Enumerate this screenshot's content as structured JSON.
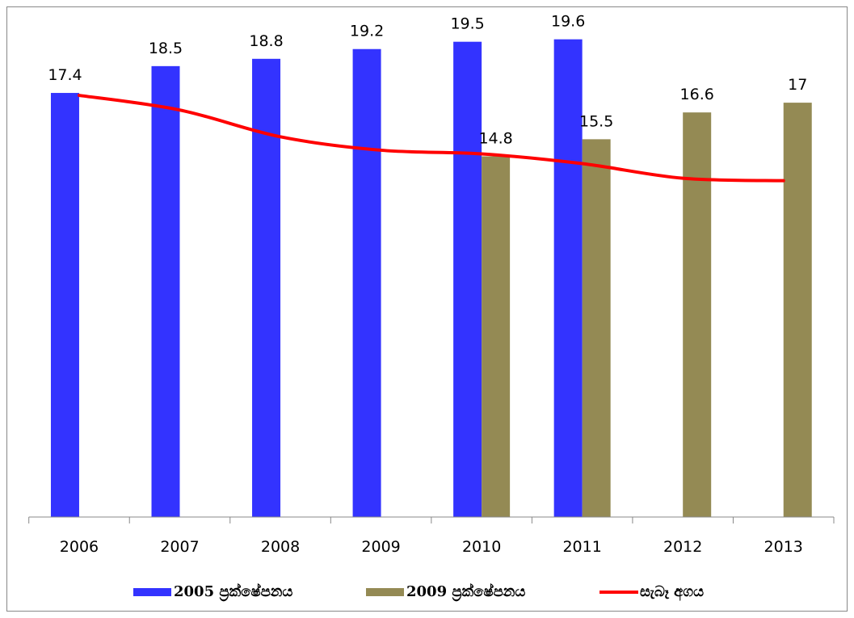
{
  "chart_data": {
    "type": "bar",
    "categories": [
      "2006",
      "2007",
      "2008",
      "2009",
      "2010",
      "2011",
      "2012",
      "2013"
    ],
    "series": [
      {
        "name": "2005 ප්‍රක්ෂේපනය",
        "type": "bar",
        "color": "#3333ff",
        "values": [
          17.4,
          18.5,
          18.8,
          19.2,
          19.5,
          19.6,
          null,
          null
        ]
      },
      {
        "name": "2009 ප්‍රක්ෂේපනය",
        "type": "bar",
        "color": "#948a54",
        "values": [
          null,
          null,
          null,
          null,
          14.8,
          15.5,
          16.6,
          17
        ]
      },
      {
        "name": "සැබෑ අගය",
        "type": "line",
        "color": "#ff0000",
        "values": [
          17.3,
          16.7,
          15.6,
          15.05,
          14.9,
          14.5,
          13.9,
          13.8
        ]
      }
    ],
    "ylim": [
      0,
      20
    ],
    "legend": "bottom"
  }
}
